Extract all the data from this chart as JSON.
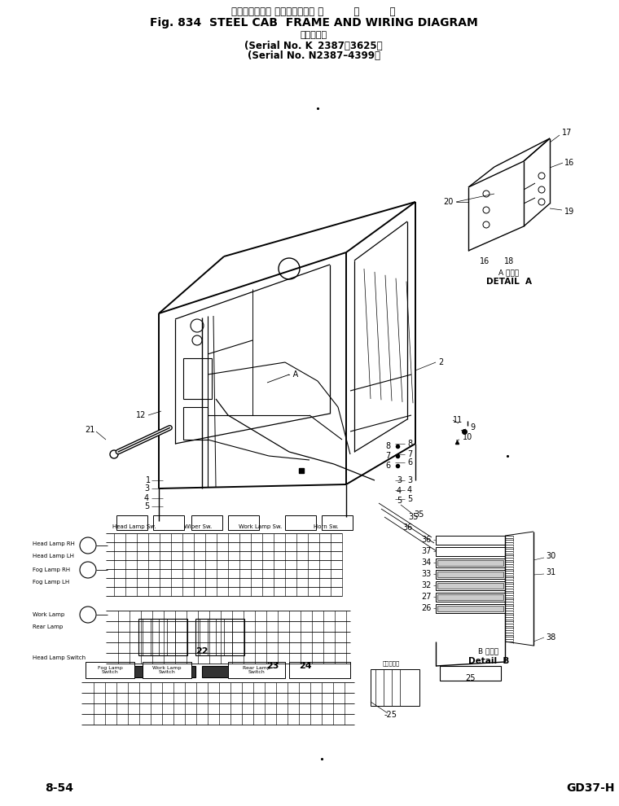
{
  "bg_color": "#ffffff",
  "title_jp": "スチールキャブ フレームおよび 配         線         図",
  "title_en": "Fig. 834  STEEL CAB  FRAME AND WIRING DIAGRAM",
  "title_sub1": "（適用号機",
  "title_sub2": "(Serial No. K  2387～3625）",
  "title_sub3": "(Serial No. N2387–4399）",
  "footer_left": "8-54",
  "footer_right": "GD37-H",
  "detail_a_label1": "A 詳細図",
  "detail_a_label2": "DETAIL  A",
  "detail_b_label1": "B 詳細図",
  "detail_b_label2": "Detail  B",
  "page_width": 7.6,
  "page_height": 9.9,
  "dpi": 100
}
